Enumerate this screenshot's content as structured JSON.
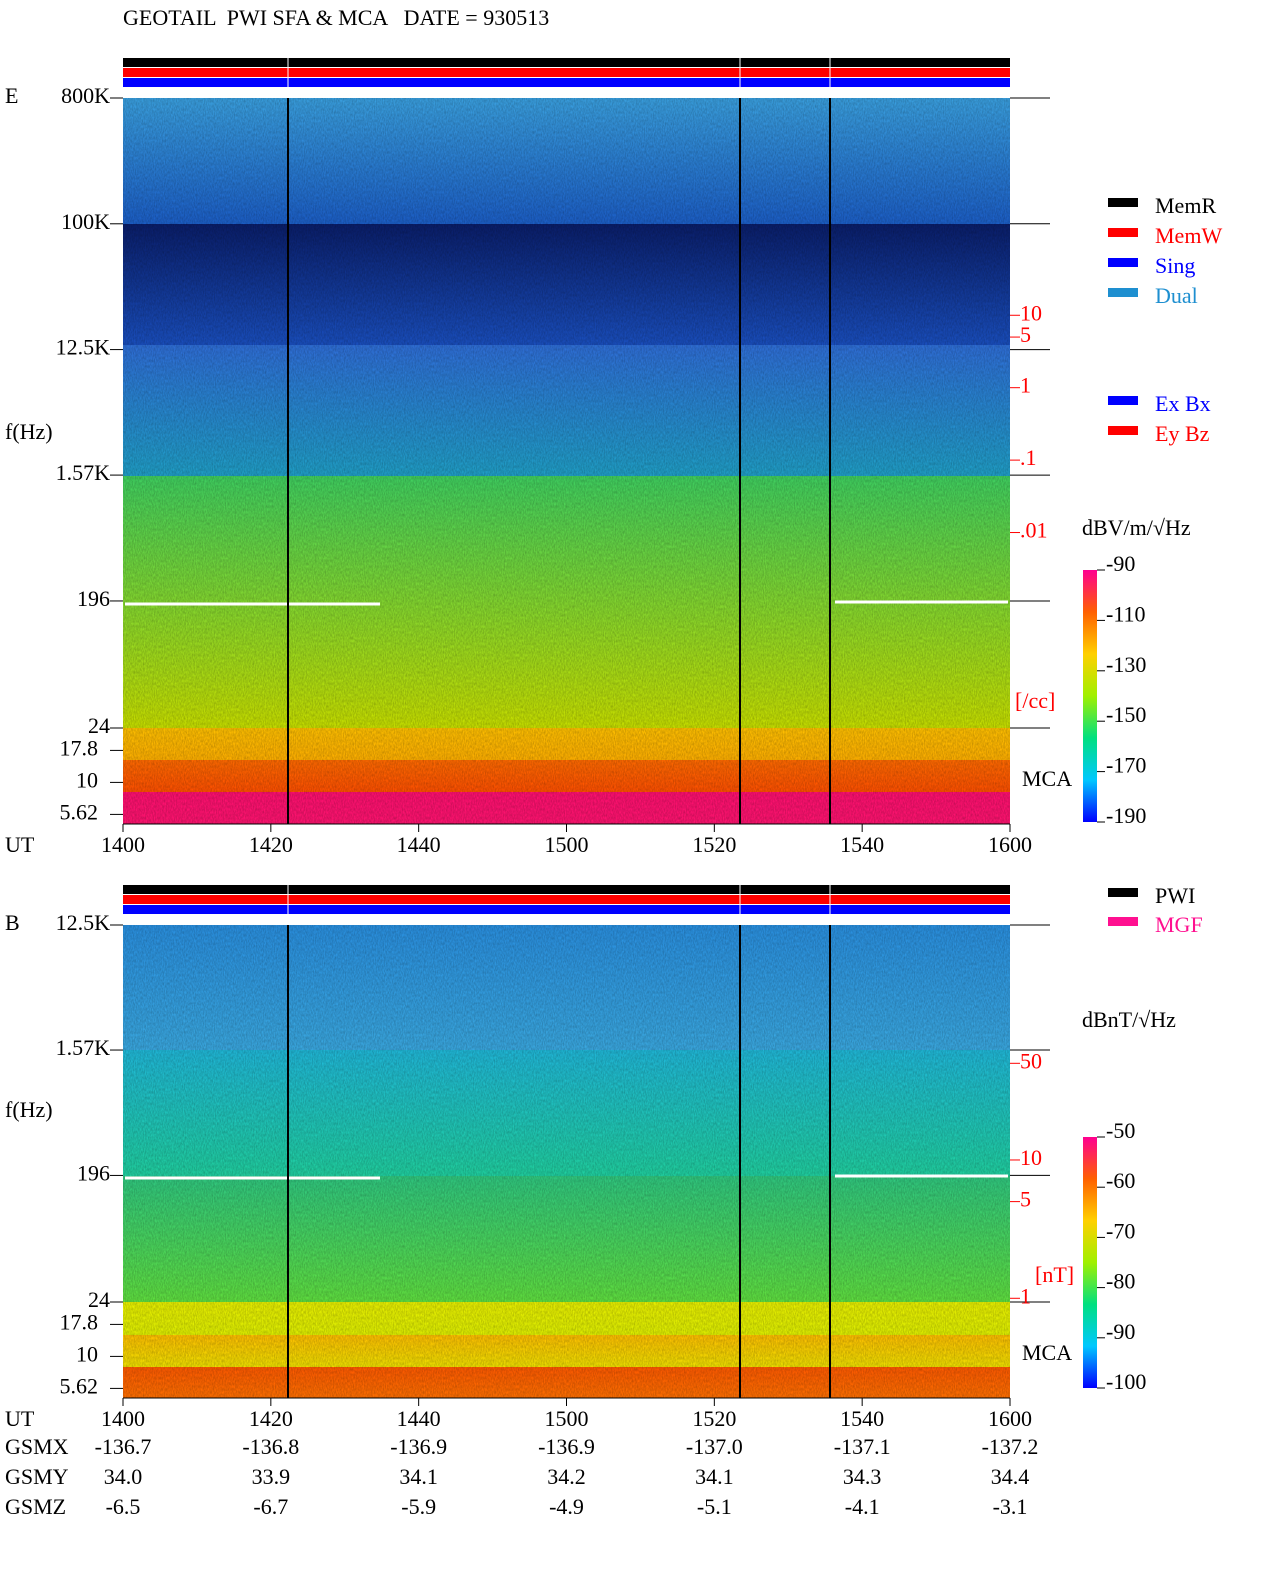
{
  "title": "GEOTAIL  PWI SFA & MCA   DATE = 930513",
  "chart_data": [
    {
      "type": "spectrogram",
      "panel_label": "E",
      "y_label": "f(Hz)",
      "x_label": "UT",
      "yscale": "log",
      "ylim": [
        24,
        800000
      ],
      "yticks": [
        {
          "value": 800000,
          "label": "800K"
        },
        {
          "value": 100000,
          "label": "100K"
        },
        {
          "value": 12500,
          "label": "12.5K"
        },
        {
          "value": 1570,
          "label": "1.57K"
        },
        196,
        24
      ],
      "mca_label": "MCA",
      "mca_ticks": [
        17.8,
        10,
        5.62
      ],
      "categories": [
        "1400",
        "1420",
        "1440",
        "1500",
        "1520",
        "1540",
        "1600"
      ],
      "y2scale": "log",
      "y2lim": [
        2e-05,
        10000
      ],
      "y2ticks": [
        10,
        5,
        1,
        {
          "value": 0.1,
          "label": ".1"
        },
        {
          "value": 0.01,
          "label": ".01"
        }
      ],
      "y2_label": "[/cc]",
      "colorbar": {
        "label": "dBV/m/√Hz",
        "lim": [
          -190,
          -90
        ],
        "ticks": [
          -90,
          -110,
          -130,
          -150,
          -170,
          -190
        ],
        "colors": [
          "#0000ff",
          "#00c8ff",
          "#00e080",
          "#a0f000",
          "#ffd000",
          "#ff6000",
          "#ff0090"
        ]
      },
      "legends": [
        [
          {
            "name": "MemR",
            "color": "#000000"
          },
          {
            "name": "MemW",
            "color": "#ff0000"
          },
          {
            "name": "Sing",
            "color": "#0000ff"
          },
          {
            "name": "Dual",
            "color": "#1e8fd0"
          }
        ],
        [
          {
            "name": "Ex Bx",
            "color": "#0000ff"
          },
          {
            "name": "Ey Bz",
            "color": "#ff0000"
          }
        ]
      ]
    },
    {
      "type": "spectrogram",
      "panel_label": "B",
      "y_label": "f(Hz)",
      "x_label": "UT",
      "yscale": "log",
      "ylim": [
        24,
        12500
      ],
      "yticks": [
        {
          "value": 12500,
          "label": "12.5K"
        },
        {
          "value": 1570,
          "label": "1.57K"
        },
        196,
        24
      ],
      "mca_label": "MCA",
      "mca_ticks": [
        17.8,
        10,
        5.62
      ],
      "categories": [
        "1400",
        "1420",
        "1440",
        "1500",
        "1520",
        "1540",
        "1600"
      ],
      "y2scale": "log",
      "y2lim": [
        0.94,
        500
      ],
      "y2ticks": [
        50,
        10,
        5,
        1
      ],
      "y2_label": "[nT]",
      "colorbar": {
        "label": "dBnT/√Hz",
        "lim": [
          -100,
          -50
        ],
        "ticks": [
          -50,
          -60,
          -70,
          -80,
          -90,
          -100
        ],
        "colors": [
          "#0000ff",
          "#00c8ff",
          "#00e080",
          "#a0f000",
          "#ffd000",
          "#ff6000",
          "#ff0090"
        ]
      },
      "legends": [
        [
          {
            "name": "PWI",
            "color": "#000000"
          },
          {
            "name": "MGF",
            "color": "#ff1090"
          }
        ]
      ]
    }
  ],
  "ephemeris": {
    "rows": [
      {
        "name": "GSMX",
        "values": [
          "-136.7",
          "-136.8",
          "-136.9",
          "-136.9",
          "-137.0",
          "-137.1",
          "-137.2"
        ]
      },
      {
        "name": "GSMY",
        "values": [
          "34.0",
          "33.9",
          "34.1",
          "34.2",
          "34.1",
          "34.3",
          "34.4"
        ]
      },
      {
        "name": "GSMZ",
        "values": [
          "-6.5",
          "-6.7",
          "-5.9",
          "-4.9",
          "-5.1",
          "-4.1",
          "-3.1"
        ]
      }
    ]
  }
}
